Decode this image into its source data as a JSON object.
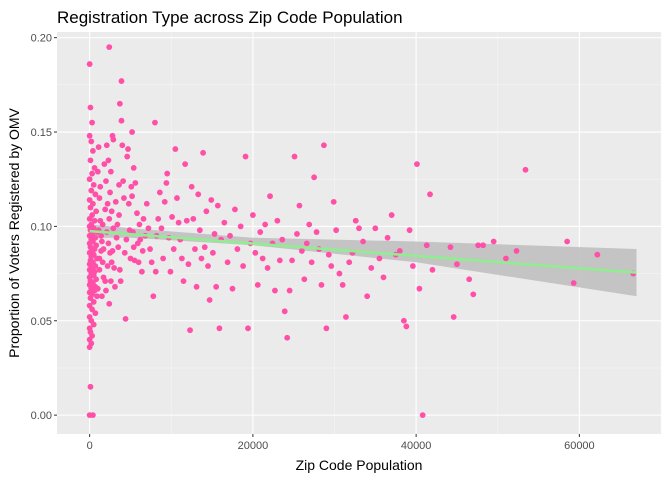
{
  "colors": {
    "panel": "#ebebeb",
    "grid_major": "#ffffff",
    "grid_minor": "#f5f5f5",
    "point": "#ff4fa7",
    "trend": "#90ee90",
    "band": "#bdbdbd",
    "tick": "#333333"
  },
  "chart_data": {
    "type": "scatter",
    "title": "Registration Type across Zip Code Population",
    "xlabel": "Zip Code Population",
    "ylabel": "Proportion of Voters Registered by OMV",
    "xlim": [
      -4000,
      70000
    ],
    "ylim": [
      -0.01,
      0.203
    ],
    "x_ticks": [
      0,
      20000,
      40000,
      60000
    ],
    "x_tick_labels": [
      "0",
      "20000",
      "40000",
      "60000"
    ],
    "y_ticks": [
      0.0,
      0.05,
      0.1,
      0.15,
      0.2
    ],
    "y_tick_labels": [
      "0.00",
      "0.05",
      "0.10",
      "0.15",
      "0.20"
    ],
    "grid": true,
    "legend": "none",
    "trend_line": {
      "method": "linear",
      "points": [
        [
          0,
          0.0975
        ],
        [
          67000,
          0.0755
        ]
      ],
      "ci_lower": [
        [
          0,
          0.094
        ],
        [
          5000,
          0.094
        ],
        [
          20000,
          0.09
        ],
        [
          40000,
          0.081
        ],
        [
          67000,
          0.063
        ]
      ],
      "ci_upper": [
        [
          0,
          0.101
        ],
        [
          5000,
          0.099
        ],
        [
          20000,
          0.094
        ],
        [
          40000,
          0.092
        ],
        [
          67000,
          0.088
        ]
      ]
    },
    "points": [
      [
        0,
        0.186
      ],
      [
        100,
        0.163
      ],
      [
        300,
        0.155
      ],
      [
        0,
        0.148
      ],
      [
        200,
        0.145
      ],
      [
        400,
        0.14
      ],
      [
        100,
        0.135
      ],
      [
        600,
        0.131
      ],
      [
        300,
        0.128
      ],
      [
        0,
        0.125
      ],
      [
        500,
        0.122
      ],
      [
        200,
        0.119
      ],
      [
        700,
        0.117
      ],
      [
        0,
        0.114
      ],
      [
        400,
        0.112
      ],
      [
        100,
        0.11
      ],
      [
        800,
        0.108
      ],
      [
        300,
        0.106
      ],
      [
        0,
        0.104
      ],
      [
        600,
        0.103
      ],
      [
        200,
        0.101
      ],
      [
        0,
        0.1
      ],
      [
        500,
        0.099
      ],
      [
        100,
        0.098
      ],
      [
        900,
        0.097
      ],
      [
        300,
        0.096
      ],
      [
        0,
        0.095
      ],
      [
        700,
        0.094
      ],
      [
        200,
        0.093
      ],
      [
        400,
        0.092
      ],
      [
        0,
        0.091
      ],
      [
        800,
        0.09
      ],
      [
        100,
        0.089
      ],
      [
        600,
        0.088
      ],
      [
        300,
        0.087
      ],
      [
        0,
        0.086
      ],
      [
        500,
        0.085
      ],
      [
        200,
        0.084
      ],
      [
        900,
        0.083
      ],
      [
        100,
        0.082
      ],
      [
        400,
        0.081
      ],
      [
        0,
        0.08
      ],
      [
        700,
        0.079
      ],
      [
        300,
        0.078
      ],
      [
        0,
        0.077
      ],
      [
        600,
        0.076
      ],
      [
        200,
        0.075
      ],
      [
        500,
        0.074
      ],
      [
        0,
        0.073
      ],
      [
        800,
        0.072
      ],
      [
        100,
        0.071
      ],
      [
        400,
        0.07
      ],
      [
        0,
        0.069
      ],
      [
        700,
        0.068
      ],
      [
        200,
        0.067
      ],
      [
        600,
        0.066
      ],
      [
        0,
        0.065
      ],
      [
        300,
        0.064
      ],
      [
        900,
        0.063
      ],
      [
        100,
        0.062
      ],
      [
        500,
        0.06
      ],
      [
        0,
        0.058
      ],
      [
        300,
        0.056
      ],
      [
        700,
        0.054
      ],
      [
        0,
        0.052
      ],
      [
        200,
        0.05
      ],
      [
        500,
        0.048
      ],
      [
        0,
        0.046
      ],
      [
        100,
        0.044
      ],
      [
        300,
        0.042
      ],
      [
        0,
        0.04
      ],
      [
        200,
        0.038
      ],
      [
        0,
        0.036
      ],
      [
        100,
        0.015
      ],
      [
        0,
        0.0
      ],
      [
        400,
        0.0
      ],
      [
        1000,
        0.129
      ],
      [
        1200,
        0.115
      ],
      [
        1300,
        0.103
      ],
      [
        1100,
        0.098
      ],
      [
        1500,
        0.092
      ],
      [
        1400,
        0.087
      ],
      [
        1600,
        0.081
      ],
      [
        1200,
        0.077
      ],
      [
        1700,
        0.073
      ],
      [
        1000,
        0.067
      ],
      [
        1500,
        0.063
      ],
      [
        1800,
        0.133
      ],
      [
        1100,
        0.142
      ],
      [
        1300,
        0.121
      ],
      [
        1900,
        0.109
      ],
      [
        1600,
        0.101
      ],
      [
        1400,
        0.095
      ],
      [
        1700,
        0.088
      ],
      [
        1200,
        0.083
      ],
      [
        1900,
        0.071
      ],
      [
        2000,
        0.124
      ],
      [
        2200,
        0.112
      ],
      [
        2400,
        0.104
      ],
      [
        2100,
        0.097
      ],
      [
        2300,
        0.091
      ],
      [
        2500,
        0.086
      ],
      [
        2200,
        0.079
      ],
      [
        2600,
        0.071
      ],
      [
        2000,
        0.066
      ],
      [
        2400,
        0.059
      ],
      [
        2100,
        0.143
      ],
      [
        2300,
        0.135
      ],
      [
        2500,
        0.118
      ],
      [
        2600,
        0.129
      ],
      [
        2800,
        0.148
      ],
      [
        2900,
        0.146
      ],
      [
        2700,
        0.108
      ],
      [
        2900,
        0.099
      ],
      [
        2800,
        0.087
      ],
      [
        2700,
        0.081
      ],
      [
        2400,
        0.195
      ],
      [
        3000,
        0.078
      ],
      [
        3100,
        0.068
      ],
      [
        3200,
        0.113
      ],
      [
        3300,
        0.094
      ],
      [
        3400,
        0.101
      ],
      [
        3500,
        0.089
      ],
      [
        3600,
        0.106
      ],
      [
        3700,
        0.077
      ],
      [
        3800,
        0.071
      ],
      [
        3600,
        0.122
      ],
      [
        3900,
        0.156
      ],
      [
        3700,
        0.165
      ],
      [
        3900,
        0.177
      ],
      [
        4000,
        0.143
      ],
      [
        4100,
        0.124
      ],
      [
        4200,
        0.115
      ],
      [
        4400,
        0.051
      ],
      [
        4300,
        0.086
      ],
      [
        4500,
        0.093
      ],
      [
        4600,
        0.137
      ],
      [
        4700,
        0.141
      ],
      [
        4800,
        0.112
      ],
      [
        4900,
        0.098
      ],
      [
        5000,
        0.083
      ],
      [
        5100,
        0.121
      ],
      [
        5200,
        0.116
      ],
      [
        5300,
        0.097
      ],
      [
        5400,
        0.089
      ],
      [
        5500,
        0.082
      ],
      [
        5200,
        0.15
      ],
      [
        5400,
        0.131
      ],
      [
        5600,
        0.123
      ],
      [
        5800,
        0.107
      ],
      [
        5900,
        0.091
      ],
      [
        6000,
        0.081
      ],
      [
        6100,
        0.101
      ],
      [
        6200,
        0.093
      ],
      [
        6400,
        0.076
      ],
      [
        6500,
        0.087
      ],
      [
        6600,
        0.104
      ],
      [
        6800,
        0.095
      ],
      [
        7000,
        0.112
      ],
      [
        7200,
        0.099
      ],
      [
        7400,
        0.088
      ],
      [
        7600,
        0.081
      ],
      [
        7800,
        0.063
      ],
      [
        8000,
        0.155
      ],
      [
        8100,
        0.076
      ],
      [
        8200,
        0.095
      ],
      [
        8400,
        0.104
      ],
      [
        8600,
        0.118
      ],
      [
        8800,
        0.099
      ],
      [
        9000,
        0.083
      ],
      [
        9200,
        0.113
      ],
      [
        9400,
        0.123
      ],
      [
        9500,
        0.128
      ],
      [
        9700,
        0.094
      ],
      [
        9900,
        0.076
      ],
      [
        10100,
        0.105
      ],
      [
        10300,
        0.088
      ],
      [
        10500,
        0.141
      ],
      [
        10700,
        0.115
      ],
      [
        10900,
        0.102
      ],
      [
        11100,
        0.093
      ],
      [
        11300,
        0.083
      ],
      [
        11500,
        0.071
      ],
      [
        11700,
        0.133
      ],
      [
        11900,
        0.103
      ],
      [
        12100,
        0.08
      ],
      [
        12300,
        0.045
      ],
      [
        12500,
        0.121
      ],
      [
        12700,
        0.104
      ],
      [
        12900,
        0.088
      ],
      [
        13100,
        0.068
      ],
      [
        13300,
        0.117
      ],
      [
        13500,
        0.098
      ],
      [
        13700,
        0.083
      ],
      [
        13900,
        0.139
      ],
      [
        14100,
        0.089
      ],
      [
        14300,
        0.108
      ],
      [
        14500,
        0.079
      ],
      [
        14700,
        0.061
      ],
      [
        14900,
        0.114
      ],
      [
        15100,
        0.086
      ],
      [
        15300,
        0.096
      ],
      [
        15500,
        0.068
      ],
      [
        15700,
        0.111
      ],
      [
        15900,
        0.046
      ],
      [
        16100,
        0.093
      ],
      [
        16500,
        0.102
      ],
      [
        16900,
        0.081
      ],
      [
        17200,
        0.095
      ],
      [
        17500,
        0.067
      ],
      [
        17800,
        0.109
      ],
      [
        18100,
        0.088
      ],
      [
        18500,
        0.1
      ],
      [
        18800,
        0.079
      ],
      [
        19100,
        0.137
      ],
      [
        19400,
        0.046
      ],
      [
        19700,
        0.091
      ],
      [
        20000,
        0.106
      ],
      [
        20300,
        0.086
      ],
      [
        20600,
        0.069
      ],
      [
        20900,
        0.097
      ],
      [
        21200,
        0.083
      ],
      [
        21500,
        0.101
      ],
      [
        21800,
        0.078
      ],
      [
        22100,
        0.116
      ],
      [
        22400,
        0.091
      ],
      [
        22700,
        0.066
      ],
      [
        23000,
        0.103
      ],
      [
        23300,
        0.082
      ],
      [
        23600,
        0.093
      ],
      [
        23900,
        0.055
      ],
      [
        24200,
        0.041
      ],
      [
        24500,
        0.066
      ],
      [
        24800,
        0.082
      ],
      [
        25100,
        0.137
      ],
      [
        25400,
        0.096
      ],
      [
        25700,
        0.111
      ],
      [
        26000,
        0.087
      ],
      [
        26300,
        0.072
      ],
      [
        26600,
        0.091
      ],
      [
        26900,
        0.101
      ],
      [
        27200,
        0.081
      ],
      [
        27500,
        0.126
      ],
      [
        27800,
        0.097
      ],
      [
        28100,
        0.088
      ],
      [
        28400,
        0.069
      ],
      [
        28700,
        0.143
      ],
      [
        29000,
        0.046
      ],
      [
        29300,
        0.085
      ],
      [
        29600,
        0.079
      ],
      [
        29900,
        0.113
      ],
      [
        30200,
        0.098
      ],
      [
        30600,
        0.075
      ],
      [
        31000,
        0.069
      ],
      [
        31400,
        0.052
      ],
      [
        31800,
        0.081
      ],
      [
        32200,
        0.086
      ],
      [
        32600,
        0.103
      ],
      [
        33000,
        0.099
      ],
      [
        33500,
        0.092
      ],
      [
        34000,
        0.063
      ],
      [
        34500,
        0.078
      ],
      [
        35000,
        0.099
      ],
      [
        35500,
        0.083
      ],
      [
        36000,
        0.073
      ],
      [
        36500,
        0.094
      ],
      [
        37000,
        0.106
      ],
      [
        37500,
        0.085
      ],
      [
        38000,
        0.087
      ],
      [
        38500,
        0.05
      ],
      [
        38800,
        0.047
      ],
      [
        39200,
        0.098
      ],
      [
        39600,
        0.079
      ],
      [
        40100,
        0.133
      ],
      [
        40400,
        0.067
      ],
      [
        40800,
        0.0
      ],
      [
        41300,
        0.09
      ],
      [
        41700,
        0.117
      ],
      [
        42000,
        0.077
      ],
      [
        44200,
        0.089
      ],
      [
        44600,
        0.052
      ],
      [
        45000,
        0.08
      ],
      [
        46500,
        0.072
      ],
      [
        47000,
        0.064
      ],
      [
        47600,
        0.09
      ],
      [
        48200,
        0.09
      ],
      [
        49500,
        0.092
      ],
      [
        51000,
        0.083
      ],
      [
        52300,
        0.087
      ],
      [
        53400,
        0.13
      ],
      [
        58500,
        0.092
      ],
      [
        59300,
        0.07
      ],
      [
        62200,
        0.085
      ],
      [
        66600,
        0.075
      ]
    ]
  }
}
